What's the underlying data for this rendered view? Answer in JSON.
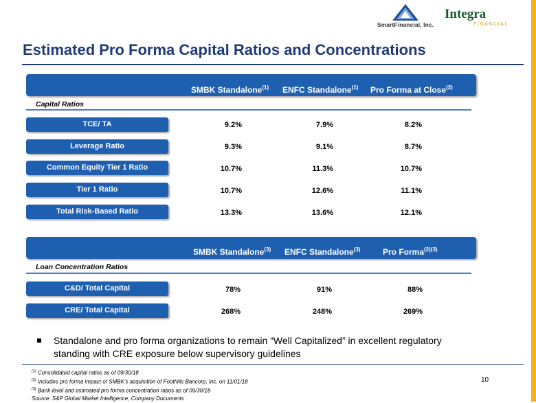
{
  "logos": {
    "smart": "SmartFinancial, Inc.",
    "integra_name": "Integra",
    "integra_sub": "FINANCIAL"
  },
  "title": "Estimated Pro Forma Capital Ratios and Concentrations",
  "capital": {
    "headers": [
      {
        "label": "SMBK Standalone",
        "sup": "(1)"
      },
      {
        "label": "ENFC Standalone",
        "sup": "(1)"
      },
      {
        "label": "Pro Forma at Close",
        "sup": "(2)"
      }
    ],
    "section_label": "Capital Ratios",
    "rows": [
      {
        "label": "TCE/ TA",
        "values": [
          "9.2%",
          "7.9%",
          "8.2%"
        ]
      },
      {
        "label": "Leverage Ratio",
        "values": [
          "9.3%",
          "9.1%",
          "8.7%"
        ]
      },
      {
        "label": "Common Equity Tier 1 Ratio",
        "values": [
          "10.7%",
          "11.3%",
          "10.7%"
        ]
      },
      {
        "label": "Tier 1 Ratio",
        "values": [
          "10.7%",
          "12.6%",
          "11.1%"
        ]
      },
      {
        "label": "Total Risk-Based Ratio",
        "values": [
          "13.3%",
          "13.6%",
          "12.1%"
        ]
      }
    ]
  },
  "loan": {
    "headers": [
      {
        "label": "SMBK Standalone",
        "sup": "(3)"
      },
      {
        "label": "ENFC Standalone",
        "sup": "(3)"
      },
      {
        "label": "Pro Forma",
        "sup": "(2)(3)"
      }
    ],
    "section_label": "Loan Concentration Ratios",
    "rows": [
      {
        "label": "C&D/ Total Capital",
        "values": [
          "78%",
          "91%",
          "88%"
        ]
      },
      {
        "label": "CRE/ Total Capital",
        "values": [
          "268%",
          "248%",
          "269%"
        ]
      }
    ]
  },
  "bullet": "Standalone and pro forma organizations to remain “Well Capitalized” in excellent regulatory standing with CRE exposure below supervisory guidelines",
  "footnotes": [
    {
      "sup": "(1)",
      "text": " Consolidated capital ratios as of 09/30/18"
    },
    {
      "sup": "(2)",
      "text": " Includes pro forma impact of SMBK’s acquisition of Foothills Bancorp, Inc. on 11/01/18"
    },
    {
      "sup": "(3)",
      "text": " Bank-level and estimated pro forma concentration ratios as of 09/30/18"
    },
    {
      "sup": "",
      "text": "Source: S&P Global Market Intelligence, Company Documents"
    }
  ],
  "page_number": "10",
  "colors": {
    "accent": "#1f5fb0",
    "title": "#1f3a76",
    "gold": "#f2b418"
  }
}
